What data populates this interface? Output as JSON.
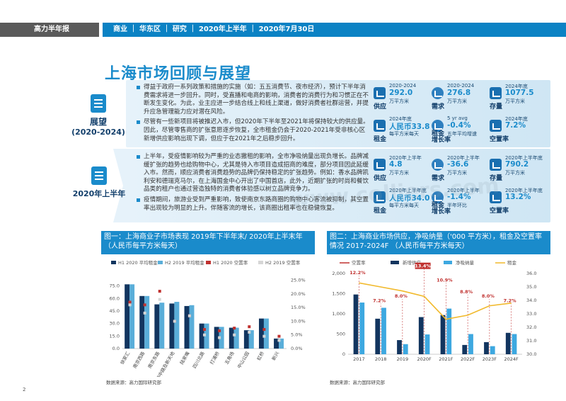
{
  "header": {
    "left": "高力半年报",
    "right": "商业  ｜ 华东区 ｜ 研究  ｜ 2020年上半年  ｜ 2020年7月30日"
  },
  "title": "上海市场回顾与展望",
  "section1": {
    "label1": "展望",
    "label2": "(2020-2024)",
    "bullets": [
      "得益于政府一系列政策和措施的实施（如：五五消费节、夜市经济），预计下半年消费需求将进一步回升。同时，受直播和电商的影响，消费者的消费行为和习惯正在不断发生变化。为此，业主应进一步结合线上和线上渠道，做好消费者社群运营，并提升应急管理能力应对潜在风险。",
      "尽管有一些新项目将被推迟入市，但2020年下半年至2021年将保持较大的供应量。因此，尽管零售商的扩张意愿逐步恢复，全市租金仍会于2020-2021年受非核心区新增供应影响出现下调，但应于在2021年之后稳步回升。"
    ],
    "stats": [
      {
        "year": "2020-2024",
        "value": "292.0",
        "unit": "万平方米",
        "cat": "供应"
      },
      {
        "year": "2020-2024",
        "value": "276.8",
        "unit": "万平方米",
        "cat": "需求"
      },
      {
        "year": "2024年底",
        "value": "1077.5",
        "unit": "万平方米",
        "cat": "存量"
      },
      {
        "year": "2024年底",
        "value": "人民币33.8",
        "unit": "每平方米每天",
        "cat": "租金"
      },
      {
        "year": "5 yr avg",
        "value": "-0.4%",
        "unit": "五年平均增速",
        "cat": "租金\n增长率"
      },
      {
        "year": "2024年底",
        "value": "7.2%",
        "unit": "",
        "cat": "空置率"
      }
    ]
  },
  "section2": {
    "label": "2020年上半年",
    "bullets": [
      "上半年，受疫情影响较为严重的业态撤租的影响，全市净吸纳量出现负增长。品牌减缓扩张的趋势也给购物中心，尤其是待入市项目造成招商的难度，部分项目因此延缓入市。然而，顺应消费者消费趋势的品牌仍保持稳定的扩张趋势。例如：香水品牌凯利安和德瑞克马尔，在上海国金中心开出了中国首店，此外，近期扩张的时尚和餐饮品类的租户也通过营造独特的消费者体验感以树立品牌竞争力。",
      "疫情期间，旅游业受到严重影响，致使南京东路商圈的购物中心客流被抑制，其空置率出现较为明显的上升。伴随客流的增长，该商圈出租率也在稳健恢复。"
    ],
    "stats": [
      {
        "year": "2020年上半年",
        "value": "4.8",
        "unit": "万平方米",
        "cat": "供应"
      },
      {
        "year": "2020年上半年",
        "value": "-36.6",
        "unit": "万平方米",
        "cat": "需求"
      },
      {
        "year": "2020年上半年底",
        "value": "790.2",
        "unit": "万平方米",
        "cat": "存量"
      },
      {
        "year": "2020年上半年底",
        "value": "人民币34.0",
        "unit": "每平方米每天",
        "cat": "租金"
      },
      {
        "year": "2020年上半年",
        "value": "-1.4%",
        "unit": "半年环比",
        "cat": "租金\n增长率"
      },
      {
        "year": "2020年上半年底",
        "value": "13.2%",
        "unit": "",
        "cat": "空置率"
      }
    ]
  },
  "watermark": "www.colliers.com",
  "fig1": {
    "title": "图一：上海商业子市场表现 2019年下半年末/ 2020年上半末年\n（人民币每平方米每天）",
    "source": "数据来源：高力国际研究部"
  },
  "fig2": {
    "title": "图二：上海商业市场供应，净吸纳量（'000 平方米），租金及空置率情况 2017-2024F （人民币每平方米每天）",
    "source": "数据来源：高力国际研究部"
  },
  "chart_data": [
    {
      "type": "bar",
      "title": "图一：上海商业子市场表现 2019年下半年末/ 2020年上半末年（人民币每平方米每天）",
      "categories": [
        "徐家汇",
        "南京西路",
        "南京东路",
        "淮海中路及新天地",
        "陆家嘴",
        "四川北路",
        "打浦桥",
        "五角场",
        "中山公园",
        "虹桥",
        "新兴"
      ],
      "series": [
        {
          "name": "H1 2020 平均租金",
          "values": [
            77,
            63,
            53,
            54,
            51,
            30,
            26,
            25,
            22,
            36,
            12
          ],
          "color": "#12355f"
        },
        {
          "name": "H2 2019 平均租金",
          "values": [
            77,
            63,
            55,
            56,
            52,
            30,
            26,
            25,
            22,
            36,
            12
          ],
          "color": "#5aaed9"
        },
        {
          "name": "H1 2020 空置率",
          "values": [
            17,
            16,
            21,
            10,
            12,
            7,
            6.5,
            7.5,
            8,
            7,
            4.5
          ],
          "color": "#c0312f"
        },
        {
          "name": "H2 2019 空置率",
          "values": [
            16,
            13,
            18,
            10,
            12,
            5,
            4,
            5,
            6,
            4.5,
            3
          ],
          "color": "#d6d6d6"
        }
      ],
      "y_left": {
        "range": [
          0,
          90
        ],
        "ticks": [
          "0.0",
          "15.0",
          "30.0",
          "45.0",
          "60.0",
          "75.0"
        ]
      },
      "y_right": {
        "range": [
          0,
          27.5
        ],
        "ticks": [
          "0.0%",
          "5.0%",
          "10.0%",
          "15.0%",
          "20.0%",
          "25.0%"
        ]
      }
    },
    {
      "type": "bar",
      "title": "图二：上海商业市场供应，净吸纳量（'000 平方米），租金及空置率情况 2017-2024F （人民币每平方米每天）",
      "categories": [
        "2017",
        "2018",
        "2019",
        "2020F",
        "2021F",
        "2022F",
        "2023F",
        "2024F"
      ],
      "series": [
        {
          "name": "空置率",
          "values": [
            12.2,
            7.2,
            8.0,
            13.4,
            10.9,
            8.8,
            8.0,
            7.2
          ],
          "color": "#c0312f"
        },
        {
          "name": "新增供应",
          "values": [
            1480,
            880,
            350,
            920,
            970,
            230,
            300,
            530
          ],
          "color": "#12355f"
        },
        {
          "name": "净吸纳量",
          "values": [
            1280,
            1150,
            250,
            490,
            1130,
            500,
            200,
            500
          ],
          "color": "#3da8e0"
        },
        {
          "name": "租金",
          "values": [
            35.3,
            35.0,
            34.7,
            34.3,
            32.6,
            32.9,
            33.6,
            33.8
          ],
          "color": "#f1b92b"
        }
      ],
      "y_left": {
        "range": [
          0,
          2000
        ],
        "ticks": [
          "0",
          "500",
          "1,000",
          "1,500",
          "2,000"
        ]
      },
      "y_right": {
        "range": [
          30,
          36
        ],
        "ticks": [
          "30.0",
          "31.0",
          "32.0",
          "33.0",
          "34.0",
          "35.0",
          "36.0"
        ]
      },
      "annotations": [
        "12.2%",
        "7.2%",
        "8.0%",
        "13.4%",
        "10.9%",
        "8.8%",
        "8.0%",
        "7.2%"
      ]
    }
  ]
}
